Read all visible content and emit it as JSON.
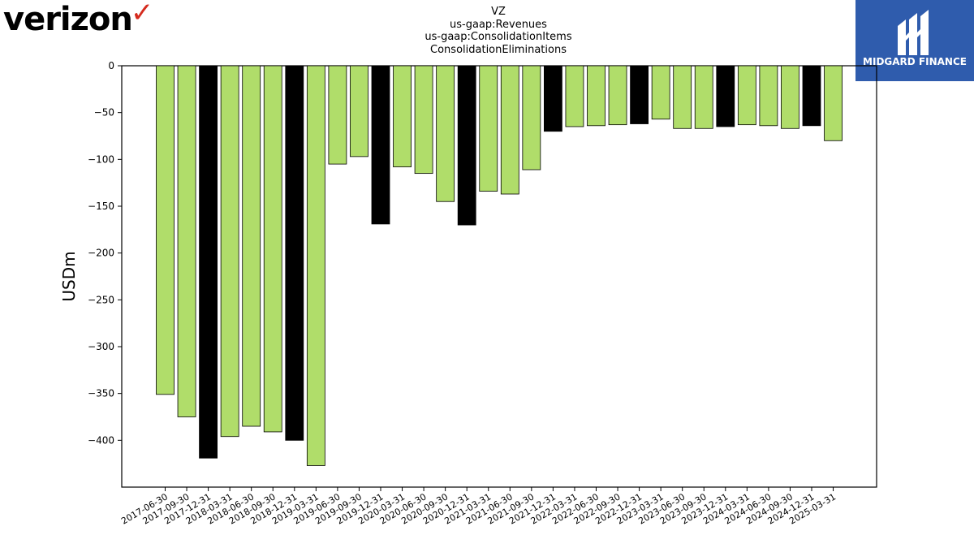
{
  "header": {
    "left_logo_text": "verizon",
    "right_logo_text": "MIDGARD FINANCE"
  },
  "chart_data": {
    "type": "bar",
    "title_lines": [
      "VZ",
      "us-gaap:Revenues",
      "us-gaap:ConsolidationItems",
      "ConsolidationEliminations"
    ],
    "xlabel": "",
    "ylabel": "USDm",
    "ylim": [
      -450,
      0
    ],
    "yticks": [
      0,
      -50,
      -100,
      -150,
      -200,
      -250,
      -300,
      -350,
      -400
    ],
    "grid": false,
    "colors": {
      "quarter": "#b0dd6a",
      "year_end": "#000000",
      "edge": "#000000"
    },
    "categories": [
      "2017-06-30",
      "2017-09-30",
      "2017-12-31",
      "2018-03-31",
      "2018-06-30",
      "2018-09-30",
      "2018-12-31",
      "2019-03-31",
      "2019-06-30",
      "2019-09-30",
      "2019-12-31",
      "2020-03-31",
      "2020-06-30",
      "2020-09-30",
      "2020-12-31",
      "2021-03-31",
      "2021-06-30",
      "2021-09-30",
      "2021-12-31",
      "2022-03-31",
      "2022-06-30",
      "2022-09-30",
      "2022-12-31",
      "2023-03-31",
      "2023-06-30",
      "2023-09-30",
      "2023-12-31",
      "2024-03-31",
      "2024-06-30",
      "2024-09-30",
      "2024-12-31",
      "2025-03-31"
    ],
    "values": [
      -351,
      -375,
      -419,
      -396,
      -385,
      -391,
      -400,
      -427,
      -105,
      -97,
      -169,
      -108,
      -115,
      -145,
      -170,
      -134,
      -137,
      -111,
      -70,
      -65,
      -64,
      -63,
      -62,
      -57,
      -67,
      -67,
      -65,
      -63,
      -64,
      -67,
      -64,
      -80
    ],
    "year_end_flags": [
      false,
      false,
      true,
      false,
      false,
      false,
      true,
      false,
      false,
      false,
      true,
      false,
      false,
      false,
      true,
      false,
      false,
      false,
      true,
      false,
      false,
      false,
      true,
      false,
      false,
      false,
      true,
      false,
      false,
      false,
      true,
      false
    ]
  }
}
